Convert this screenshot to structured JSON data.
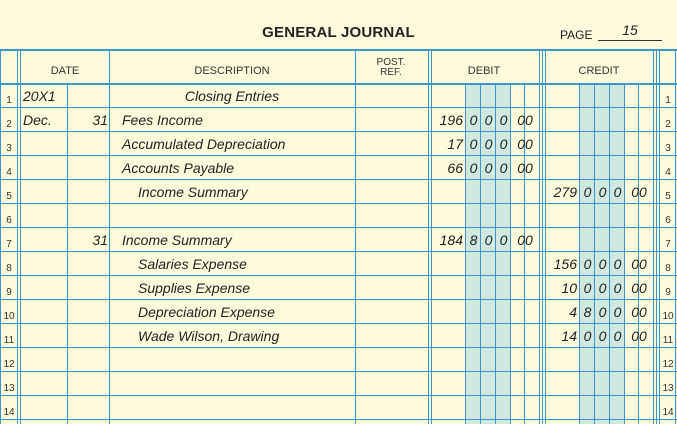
{
  "journal": {
    "title": "GENERAL JOURNAL",
    "page_label": "PAGE",
    "page_number": "15",
    "headers": {
      "date": "DATE",
      "description": "DESCRIPTION",
      "post_ref_1": "POST.",
      "post_ref_2": "REF.",
      "debit": "DEBIT",
      "credit": "CREDIT"
    },
    "line_numbers": [
      "1",
      "2",
      "3",
      "4",
      "5",
      "6",
      "7",
      "8",
      "9",
      "10",
      "11",
      "12",
      "13",
      "14"
    ],
    "rows": [
      {
        "month": "20X1",
        "day": "",
        "description": "Closing Entries",
        "indent": "center",
        "debit": "",
        "credit": ""
      },
      {
        "month": "Dec.",
        "day": "31",
        "description": "Fees Income",
        "indent": "0",
        "debit": "196000.00",
        "credit": ""
      },
      {
        "month": "",
        "day": "",
        "description": "Accumulated Depreciation",
        "indent": "0",
        "debit": "17000.00",
        "credit": ""
      },
      {
        "month": "",
        "day": "",
        "description": "Accounts Payable",
        "indent": "0",
        "debit": "66000.00",
        "credit": ""
      },
      {
        "month": "",
        "day": "",
        "description": "Income Summary",
        "indent": "1",
        "debit": "",
        "credit": "279000.00"
      },
      {
        "month": "",
        "day": "",
        "description": "",
        "indent": "0",
        "debit": "",
        "credit": ""
      },
      {
        "month": "",
        "day": "31",
        "description": "Income Summary",
        "indent": "0",
        "debit": "184800.00",
        "credit": ""
      },
      {
        "month": "",
        "day": "",
        "description": "Salaries Expense",
        "indent": "1",
        "debit": "",
        "credit": "156000.00"
      },
      {
        "month": "",
        "day": "",
        "description": "Supplies Expense",
        "indent": "1",
        "debit": "",
        "credit": "10000.00"
      },
      {
        "month": "",
        "day": "",
        "description": "Depreciation Expense",
        "indent": "1",
        "debit": "",
        "credit": "4800.00"
      },
      {
        "month": "",
        "day": "",
        "description": "Wade Wilson, Drawing",
        "indent": "1",
        "debit": "",
        "credit": "14000.00"
      },
      {
        "month": "",
        "day": "",
        "description": "",
        "indent": "0",
        "debit": "",
        "credit": ""
      },
      {
        "month": "",
        "day": "",
        "description": "",
        "indent": "0",
        "debit": "",
        "credit": ""
      },
      {
        "month": "",
        "day": "",
        "description": "",
        "indent": "0",
        "debit": "",
        "credit": ""
      }
    ]
  }
}
